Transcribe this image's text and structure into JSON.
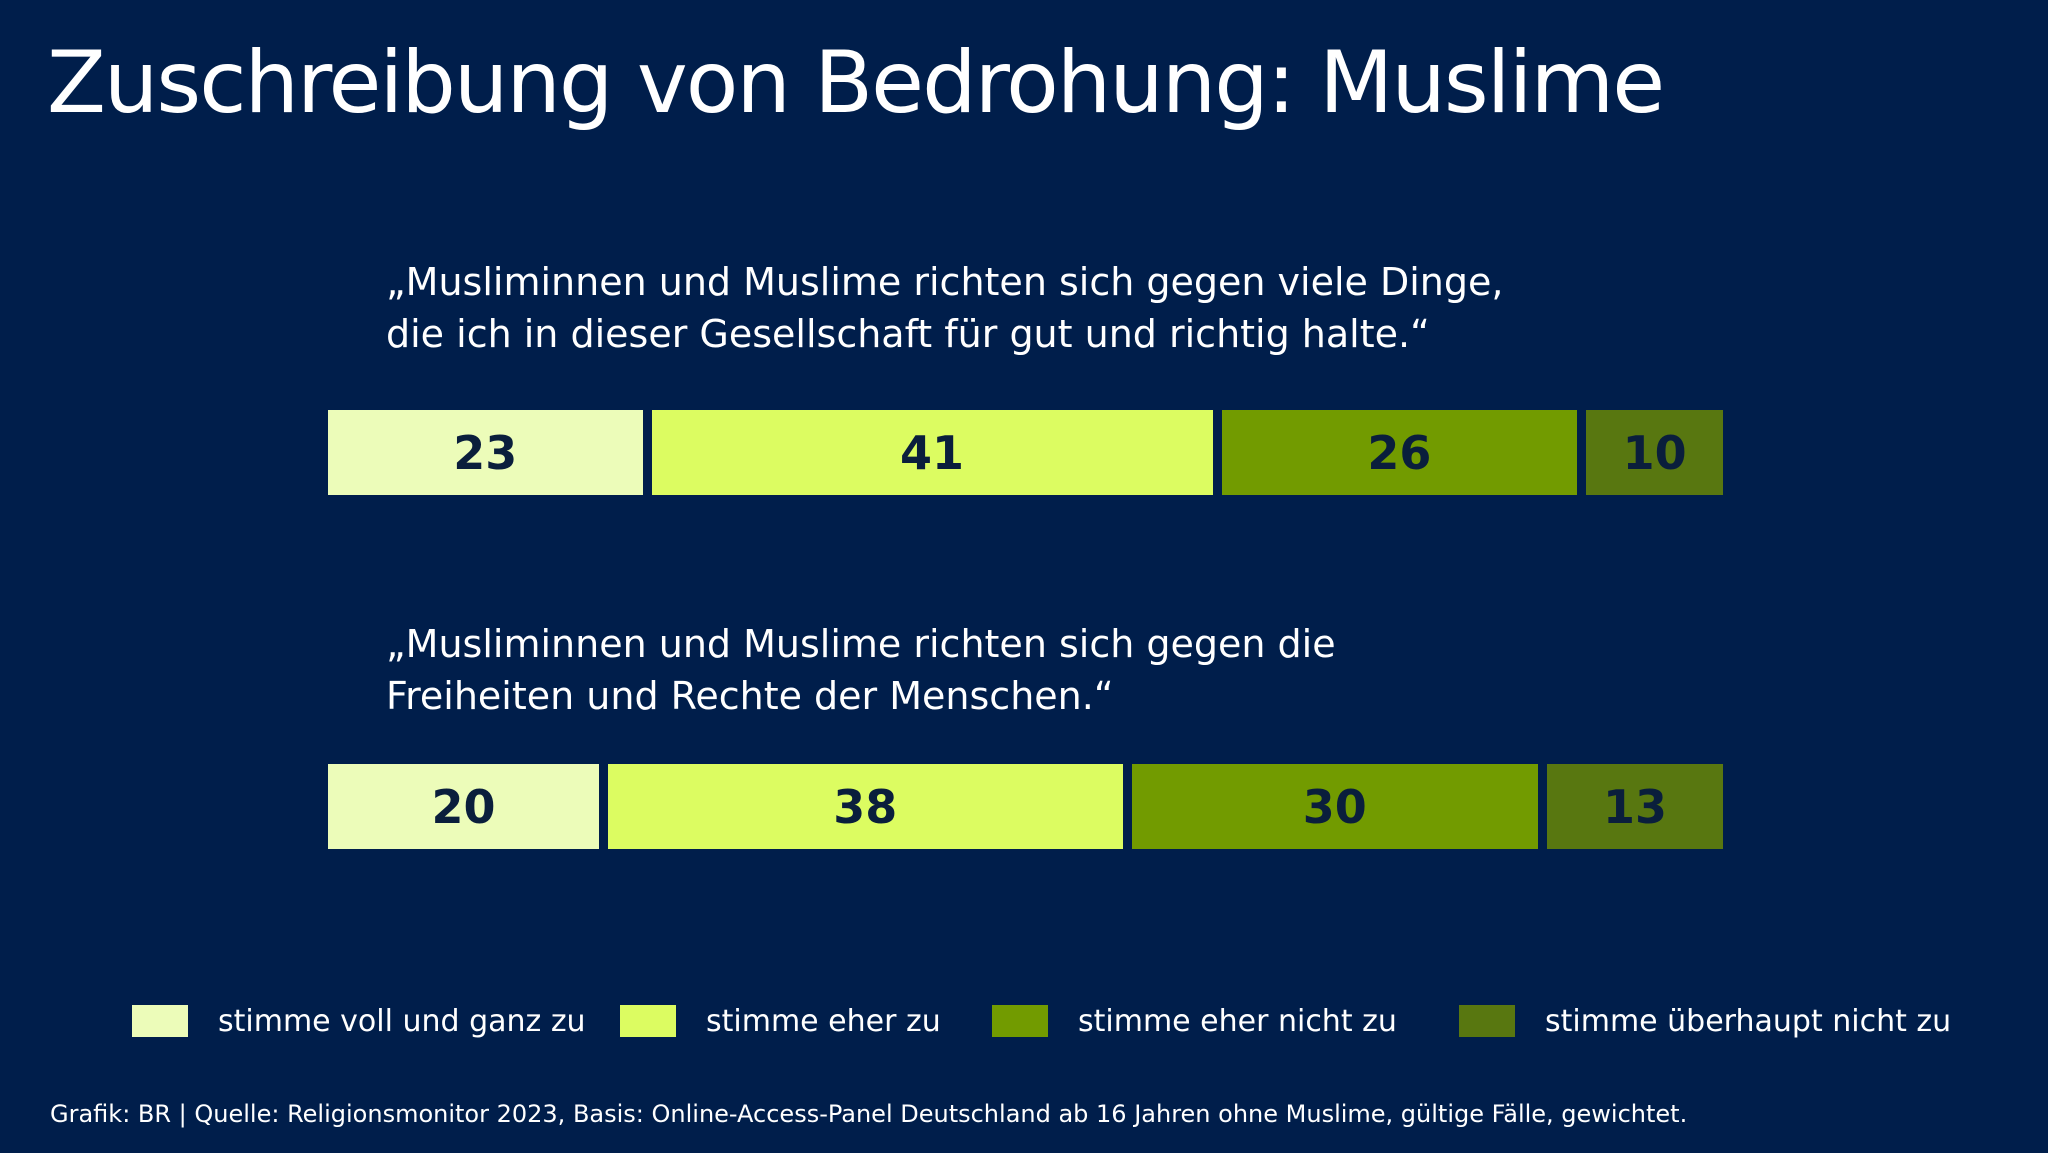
{
  "title": "Zuschreibung von Bedrohung: Muslime",
  "questions": [
    {
      "line1": "„Musliminnen und Muslime richten sich gegen viele Dinge,",
      "line2": "die ich in dieser Gesellschaft für gut und richtig halte.“"
    },
    {
      "line1": "„Musliminnen und Muslime richten sich gegen die",
      "line2": "Freiheiten und Rechte der Menschen.“"
    }
  ],
  "colors": {
    "background": "#001e4b",
    "category": [
      "#ecfcb9",
      "#dcfc61",
      "#729b00",
      "#587710"
    ]
  },
  "legend": [
    {
      "label": "stimme voll und ganz zu"
    },
    {
      "label": "stimme eher zu"
    },
    {
      "label": "stimme eher nicht zu"
    },
    {
      "label": "stimme überhaupt nicht zu"
    }
  ],
  "footer": "Grafik: BR | Quelle: Religionsmonitor 2023, Basis: Online-Access-Panel Deutschland ab 16 Jahren ohne Muslime, gültige Fälle, gewichtet.",
  "chart_data": {
    "type": "bar",
    "stacked": true,
    "orientation": "horizontal",
    "title": "Zuschreibung von Bedrohung: Muslime",
    "categories": [
      "„Musliminnen und Muslime richten sich gegen viele Dinge, die ich in dieser Gesellschaft für gut und richtig halte.“",
      "„Musliminnen und Muslime richten sich gegen die Freiheiten und Rechte der Menschen.“"
    ],
    "series": [
      {
        "name": "stimme voll und ganz zu",
        "values": [
          23,
          20
        ]
      },
      {
        "name": "stimme eher zu",
        "values": [
          41,
          38
        ]
      },
      {
        "name": "stimme eher nicht zu",
        "values": [
          26,
          30
        ]
      },
      {
        "name": "stimme überhaupt nicht zu",
        "values": [
          10,
          13
        ]
      }
    ],
    "legend_position": "bottom",
    "grid": false
  }
}
